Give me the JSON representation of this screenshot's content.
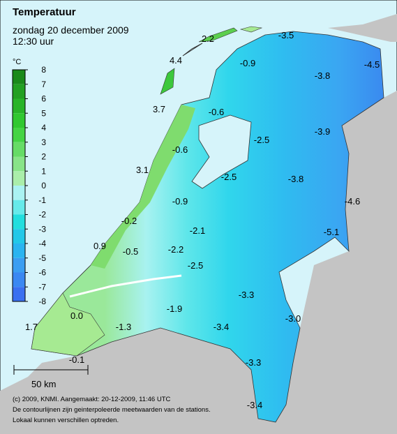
{
  "header": {
    "title": "Temperatuur",
    "date": "zondag 20 december 2009",
    "time": "12:30 uur"
  },
  "legend": {
    "unit": "°C",
    "ticks": [
      8,
      7,
      6,
      5,
      4,
      3,
      2,
      1,
      0,
      -1,
      -2,
      -3,
      -4,
      -5,
      -6,
      -7,
      -8
    ]
  },
  "map": {
    "labels": [
      "2.2",
      "-3.5",
      "4.4",
      "-0.9",
      "-4.5",
      "-3.8",
      "3.7",
      "-0.6",
      "-3.9",
      "-2.5",
      "-0.6",
      "3.1",
      "-2.5",
      "-3.8",
      "-0.9",
      "-4.6",
      "-0.2",
      "-2.1",
      "-5.1",
      "0.9",
      "-0.5",
      "-2.2",
      "-2.5",
      "0.0",
      "-1.9",
      "-3.3",
      "-3.0",
      "1.7",
      "-1.3",
      "-3.4",
      "-0.1",
      "-3.3",
      "-3.4"
    ]
  },
  "scale": "50 km",
  "footer": [
    "(c) 2009, KNMI. Aangemaakt: 20-12-2009, 11:46 UTC",
    "De contourlijnen zijn geinterpoleerde meetwaarden van de stations.",
    "Lokaal kunnen verschillen optreden."
  ]
}
